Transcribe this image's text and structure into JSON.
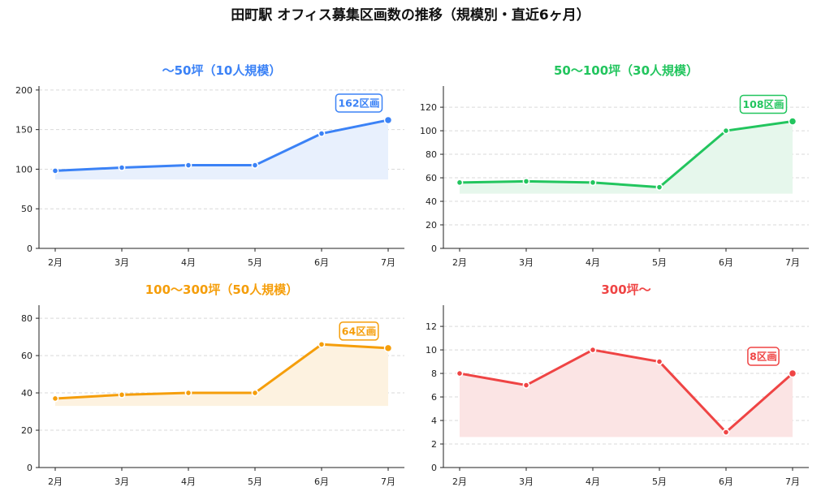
{
  "title": "田町駅 オフィス募集区画数の推移（規模別・直近6ヶ月）",
  "chart_data": [
    {
      "type": "line",
      "title": "〜50坪（10人規模）",
      "color": "#3b82f6",
      "fill": "#e8f0fd",
      "categories": [
        "2月",
        "3月",
        "4月",
        "5月",
        "6月",
        "7月"
      ],
      "values": [
        98,
        102,
        105,
        105,
        145,
        162
      ],
      "ylim": [
        0,
        205
      ],
      "yticks": [
        0,
        50,
        100,
        150,
        200
      ],
      "fill_base": 87,
      "annotation": "162区画"
    },
    {
      "type": "line",
      "title": "50〜100坪（30人規模）",
      "color": "#22c55e",
      "fill": "#e6f7ec",
      "categories": [
        "2月",
        "3月",
        "4月",
        "5月",
        "6月",
        "7月"
      ],
      "values": [
        56,
        57,
        56,
        52,
        100,
        108
      ],
      "ylim": [
        0,
        138
      ],
      "yticks": [
        0,
        20,
        40,
        60,
        80,
        100,
        120
      ],
      "fill_base": 46.5,
      "annotation": "108区画"
    },
    {
      "type": "line",
      "title": "100〜300坪（50人規模）",
      "color": "#f59e0b",
      "fill": "#fdf2e0",
      "categories": [
        "2月",
        "3月",
        "4月",
        "5月",
        "6月",
        "7月"
      ],
      "values": [
        37,
        39,
        40,
        40,
        66,
        64
      ],
      "ylim": [
        0,
        87
      ],
      "yticks": [
        0,
        20,
        40,
        60,
        80
      ],
      "fill_base": 33,
      "annotation": "64区画"
    },
    {
      "type": "line",
      "title": "300坪〜",
      "color": "#ef4444",
      "fill": "#fbe4e4",
      "categories": [
        "2月",
        "3月",
        "4月",
        "5月",
        "6月",
        "7月"
      ],
      "values": [
        8,
        7,
        10,
        9,
        3,
        8
      ],
      "ylim": [
        0,
        13.8
      ],
      "yticks": [
        0,
        2,
        4,
        6,
        8,
        10,
        12
      ],
      "fill_base": 2.6,
      "annotation": "8区画"
    }
  ]
}
